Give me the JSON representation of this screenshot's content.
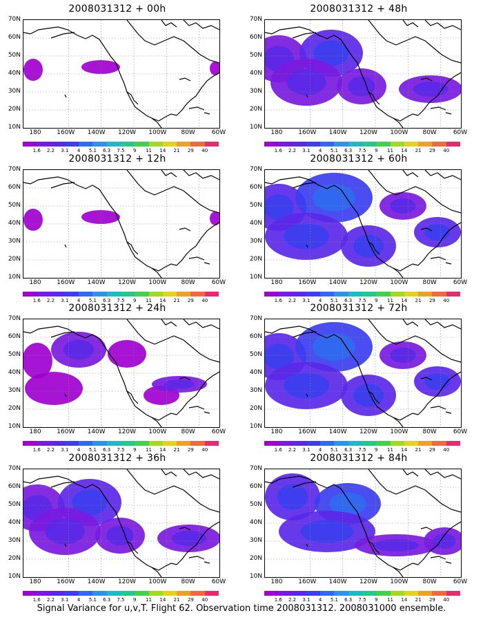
{
  "caption": "Signal Variance for u,v,T. Flight 62. Observation time 2008031312. 2008031000 ensemble.",
  "lat_ticks": [
    "70N",
    "60N",
    "50N",
    "40N",
    "30N",
    "20N",
    "10N"
  ],
  "lon_ticks": [
    "180",
    "160W",
    "140W",
    "120W",
    "100W",
    "80W",
    "60W"
  ],
  "colorbar": {
    "labels": [
      "1.6",
      "2.2",
      "3.1",
      "4",
      "5.1",
      "6.3",
      "7.5",
      "9",
      "11",
      "14",
      "21",
      "29",
      "40"
    ],
    "colors": [
      "#a000d0",
      "#7a1ae0",
      "#5a28e8",
      "#3b3fef",
      "#2f6bf0",
      "#2b93ef",
      "#20b8c8",
      "#22c98c",
      "#3fd24a",
      "#9ddc1e",
      "#e6d21a",
      "#f0a028",
      "#ef6a3a",
      "#ea2a6e"
    ]
  },
  "panels": [
    {
      "title": "2008031312 + 00h",
      "level": 0
    },
    {
      "title": "2008031312 + 48h",
      "level": 2
    },
    {
      "title": "2008031312 + 12h",
      "level": 0
    },
    {
      "title": "2008031312 + 60h",
      "level": 3
    },
    {
      "title": "2008031312 + 24h",
      "level": 1
    },
    {
      "title": "2008031312 + 72h",
      "level": 3
    },
    {
      "title": "2008031312 + 36h",
      "level": 2
    },
    {
      "title": "2008031312 + 84h",
      "level": 4
    }
  ]
}
